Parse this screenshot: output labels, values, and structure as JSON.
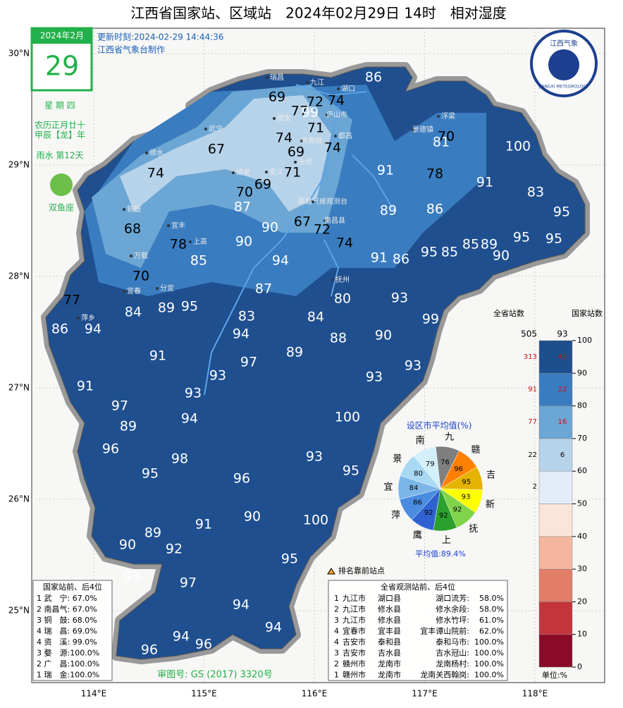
{
  "header": {
    "title": "江西省国家站、区域站　2024年02月29日 14时　相对湿度",
    "update": "更新时刻:2024-02-29 14:44:36",
    "maker": "江西省气象台制作",
    "logo_cn": "江西气象",
    "logo_en": "JIANGXI METEOROLOGY"
  },
  "calendar": {
    "month": "2024年2月",
    "day": "29",
    "weekday": "星 期 四",
    "lunar": "农历正月廿十",
    "year": "甲辰【龙】年",
    "term": "雨水 第12天",
    "zodiac": "双鱼座"
  },
  "axes": {
    "lat": [
      {
        "value": 30,
        "label": "30°N"
      },
      {
        "value": 29,
        "label": "29°N"
      },
      {
        "value": 28,
        "label": "28°N"
      },
      {
        "value": 27,
        "label": "27°N"
      },
      {
        "value": 26,
        "label": "26°N"
      },
      {
        "value": 25,
        "label": "25°N"
      }
    ],
    "lon": [
      {
        "value": 114,
        "label": "114°E"
      },
      {
        "value": 115,
        "label": "115°E"
      },
      {
        "value": 116,
        "label": "116°E"
      },
      {
        "value": 117,
        "label": "117°E"
      },
      {
        "value": 118,
        "label": "118°E"
      }
    ]
  },
  "map_values": [
    86,
    69,
    72,
    74,
    77,
    99,
    71,
    74,
    69,
    74,
    70,
    81,
    100,
    67,
    74,
    71,
    91,
    78,
    91,
    83,
    70,
    69,
    87,
    89,
    86,
    95,
    68,
    78,
    90,
    67,
    72,
    74,
    90,
    95,
    85,
    85,
    89,
    95,
    95,
    90,
    85,
    94,
    91,
    86,
    70,
    77,
    84,
    89,
    95,
    87,
    80,
    93,
    99,
    86,
    94,
    83,
    84,
    88,
    90,
    94,
    89,
    91,
    97,
    93,
    93,
    91,
    93,
    93,
    97,
    89,
    94,
    100,
    96,
    98,
    93,
    95,
    95,
    96,
    89,
    91,
    90,
    100,
    90,
    92,
    95,
    93,
    97,
    94,
    94,
    94,
    96,
    96
  ],
  "place_names": [
    "瑞昌",
    "九江",
    "湖口",
    "庐山市",
    "德安",
    "共青城",
    "都昌",
    "浮梁",
    "景德镇",
    "武宁",
    "修水",
    "永修",
    "安义",
    "靖安",
    "铜鼓",
    "宜丰",
    "南昌气候观测台",
    "南昌县",
    "万载",
    "上高",
    "宜春",
    "分宜",
    "抚州",
    "萍乡"
  ],
  "colorbar": {
    "head_left": "全省站数",
    "head_right": "国家站数",
    "ticks": [
      0,
      10,
      20,
      30,
      40,
      50,
      60,
      70,
      80,
      90,
      100
    ],
    "colors": [
      "#8a0b28",
      "#c4343c",
      "#e27d68",
      "#f5b6a0",
      "#fbe4da",
      "#e4edf7",
      "#b7d3ea",
      "#6ba6d4",
      "#3a7cc0",
      "#1d4f8f"
    ],
    "province_counts": [
      505,
      313,
      91,
      77,
      22,
      2
    ],
    "national_counts": [
      93,
      49,
      22,
      16,
      6
    ],
    "unit": "单位:%"
  },
  "pie": {
    "title": "设区市平均值(%)",
    "labels": [
      "九",
      "赣",
      "吉",
      "新",
      "抚",
      "上",
      "鹰",
      "萍",
      "宜",
      "景",
      "南"
    ],
    "values": [
      76,
      96,
      95,
      93,
      92,
      92,
      92,
      86,
      84,
      80,
      79
    ],
    "colors": [
      "#7f7f7f",
      "#ff8000",
      "#e6b400",
      "#ffff00",
      "#80d44a",
      "#2ca02c",
      "#2f62d0",
      "#4a8ce0",
      "#7cb6e8",
      "#a9d8f2",
      "#d3effa"
    ],
    "average": "平均值:89.4%"
  },
  "marker_legend": "排名靠前站点",
  "rank_national": {
    "title": "国家站前、后4位",
    "rows": [
      "1 武　宁: 67.0%",
      "2 南昌气: 67.0%",
      "3 铜　鼓: 68.0%",
      "4 瑞　昌: 69.0%",
      "4 资　溪: 99.0%",
      "3 婺　源:100.0%",
      "2 广　昌:100.0%",
      "1 瑞　金:100.0%"
    ]
  },
  "rank_province": {
    "title": "全省观测站前、后4位",
    "rows": [
      [
        "1",
        "九江市",
        "湖口县",
        "湖口流芳:",
        "58.0%"
      ],
      [
        "2",
        "九江市",
        "修水县",
        "修水余段:",
        "58.0%"
      ],
      [
        "3",
        "九江市",
        "修水县",
        "修水竹坪:",
        "61.0%"
      ],
      [
        "4",
        "宜春市",
        "宜丰县",
        "宜丰谭山院前:",
        "62.0%"
      ],
      [
        "4",
        "吉安市",
        "泰和县",
        "泰和马市:",
        "100.0%"
      ],
      [
        "3",
        "吉安市",
        "吉水县",
        "吉水冠山:",
        "100.0%"
      ],
      [
        "2",
        "赣州市",
        "龙南市",
        "龙南杨村:",
        "100.0%"
      ],
      [
        "1",
        "赣州市",
        "龙南市",
        "龙南关西翰岗:",
        "100.0%"
      ]
    ]
  },
  "footer": "审图号: GS (2017) 3320号"
}
